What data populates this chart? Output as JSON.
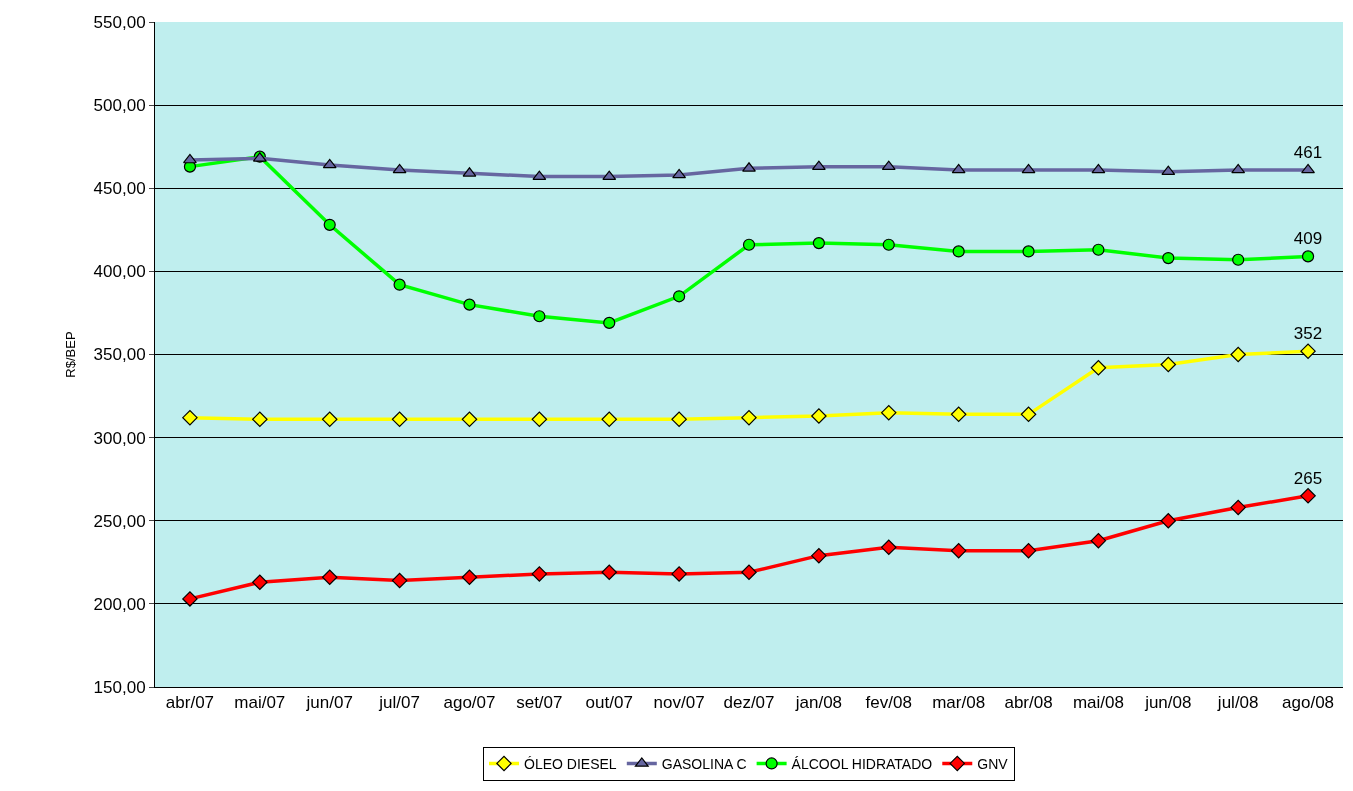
{
  "chart_data": {
    "type": "line",
    "ylabel": "R$/BEP",
    "categories": [
      "abr/07",
      "mai/07",
      "jun/07",
      "jul/07",
      "ago/07",
      "set/07",
      "out/07",
      "nov/07",
      "dez/07",
      "jan/08",
      "fev/08",
      "mar/08",
      "abr/08",
      "mai/08",
      "jun/08",
      "jul/08",
      "ago/08"
    ],
    "series": [
      {
        "name": "ÓLEO DIESEL",
        "color": "#ffff00",
        "marker": "diamond",
        "values": [
          312,
          311,
          311,
          311,
          311,
          311,
          311,
          311,
          312,
          313,
          315,
          314,
          314,
          342,
          344,
          350,
          352
        ],
        "value_labels": [
          null,
          null,
          null,
          null,
          null,
          null,
          null,
          null,
          null,
          null,
          null,
          null,
          null,
          null,
          null,
          null,
          "352"
        ]
      },
      {
        "name": "GASOLINA C",
        "color": "#6666a0",
        "marker": "triangle",
        "values": [
          467,
          468,
          464,
          461,
          459,
          457,
          457,
          458,
          462,
          463,
          463,
          461,
          461,
          461,
          460,
          461,
          461
        ],
        "value_labels": [
          null,
          null,
          null,
          null,
          null,
          null,
          null,
          null,
          null,
          null,
          null,
          null,
          null,
          null,
          null,
          null,
          "461"
        ]
      },
      {
        "name": "ÁLCOOL HIDRATADO",
        "color": "#00ff00",
        "marker": "circle",
        "values": [
          463,
          469,
          428,
          392,
          380,
          373,
          369,
          385,
          416,
          417,
          416,
          412,
          412,
          413,
          408,
          407,
          409
        ],
        "value_labels": [
          null,
          null,
          null,
          null,
          null,
          null,
          null,
          null,
          null,
          null,
          null,
          null,
          null,
          null,
          null,
          null,
          "409"
        ]
      },
      {
        "name": "GNV",
        "color": "#ff0000",
        "marker": "diamond",
        "values": [
          203,
          213,
          216,
          214,
          216,
          218,
          219,
          218,
          219,
          229,
          234,
          232,
          232,
          238,
          250,
          258,
          265
        ],
        "value_labels": [
          null,
          null,
          null,
          null,
          null,
          null,
          null,
          null,
          null,
          null,
          null,
          null,
          null,
          null,
          null,
          null,
          "265"
        ]
      }
    ],
    "ylim": [
      150,
      550
    ],
    "yticks": [
      {
        "value": 150,
        "label": "150,00"
      },
      {
        "value": 200,
        "label": "200,00"
      },
      {
        "value": 250,
        "label": "250,00"
      },
      {
        "value": 300,
        "label": "300,00"
      },
      {
        "value": 350,
        "label": "350,00"
      },
      {
        "value": 400,
        "label": "400,00"
      },
      {
        "value": 450,
        "label": "450,00"
      },
      {
        "value": 500,
        "label": "500,00"
      },
      {
        "value": 550,
        "label": "550,00"
      }
    ],
    "grid": "y",
    "legend": "bottom",
    "line_style": "solid"
  }
}
